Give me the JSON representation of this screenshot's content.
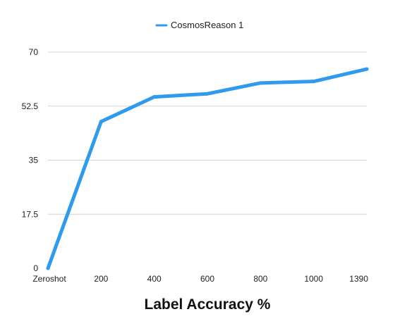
{
  "chart_data": {
    "type": "line",
    "title": "",
    "xlabel": "Label Accuracy %",
    "ylabel": "",
    "categories": [
      "Zeroshot",
      "200",
      "400",
      "600",
      "800",
      "1000",
      "1390"
    ],
    "series": [
      {
        "name": "CosmosReason 1",
        "values": [
          0,
          47.5,
          55.5,
          56.5,
          60.0,
          60.5,
          64.5
        ],
        "color": "#2f9bef"
      }
    ],
    "ylim": [
      0,
      70
    ],
    "yticks": [
      "0",
      "17.5",
      "35",
      "52.5",
      "70"
    ],
    "grid": true,
    "legend_position": "top-center"
  }
}
